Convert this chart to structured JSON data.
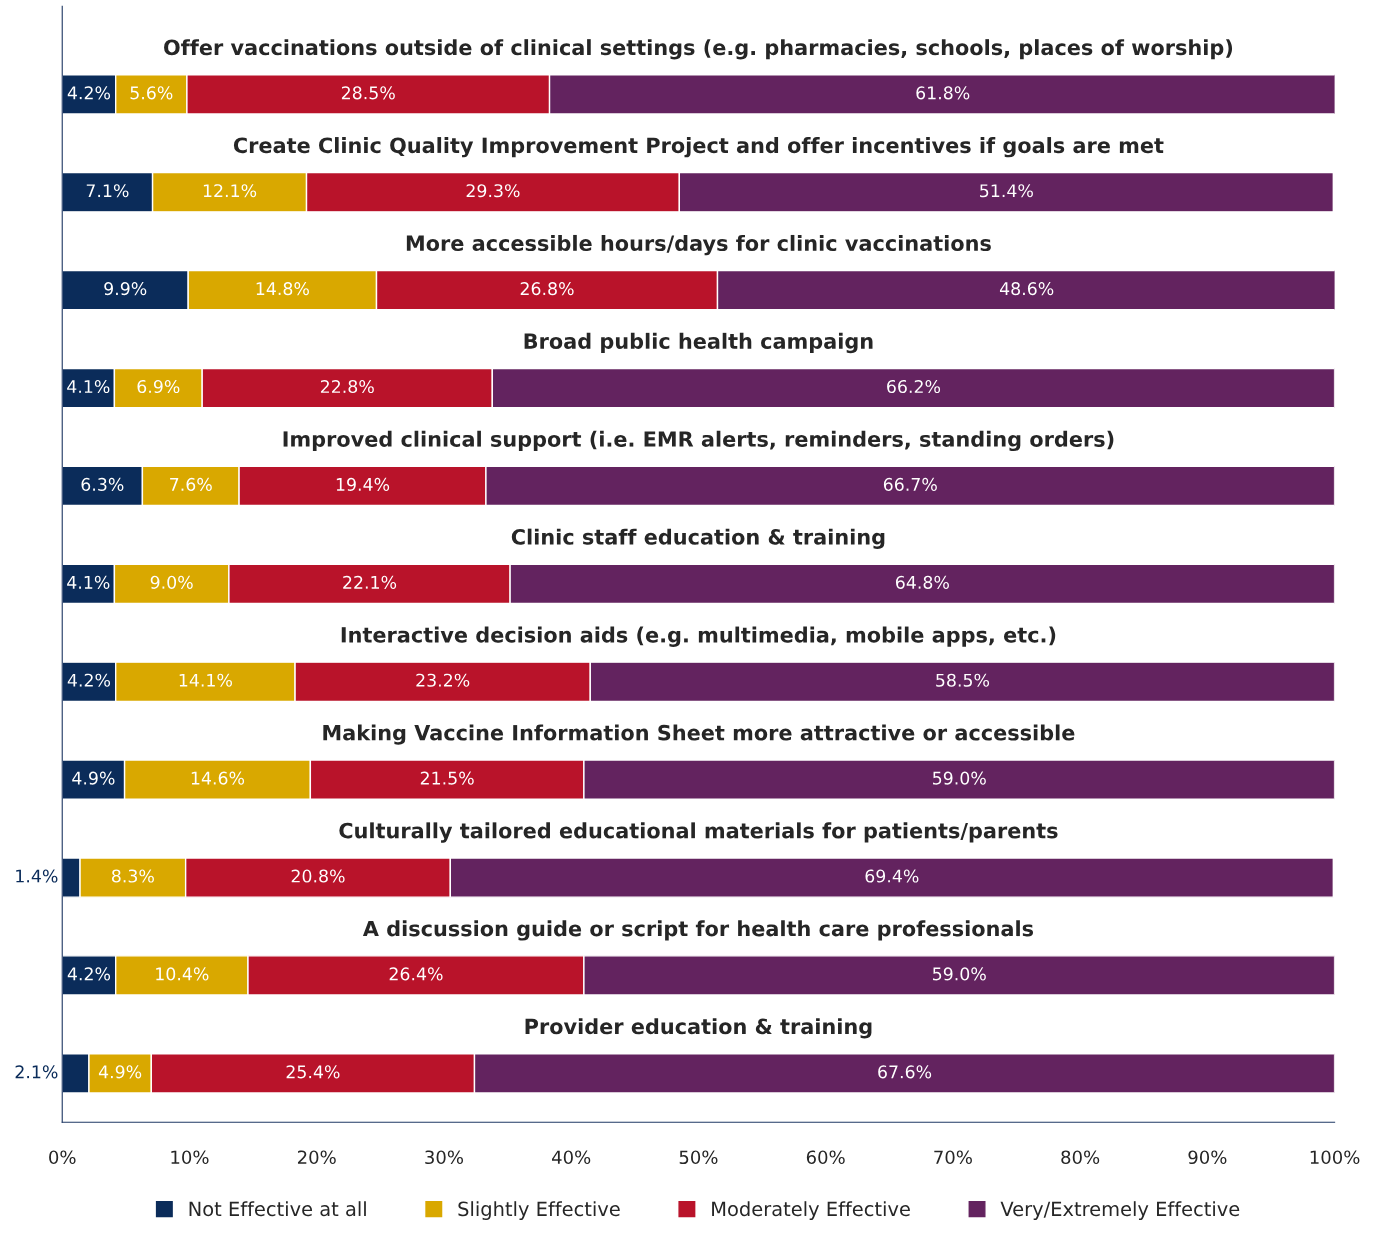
{
  "chart_data": {
    "type": "bar",
    "orientation": "horizontal",
    "stacked": true,
    "categories": [
      "Offer vaccinations outside of clinical settings (e.g. pharmacies, schools, places of worship)",
      "Create Clinic Quality Improvement Project and offer incentives if goals are met",
      "More accessible hours/days for clinic vaccinations",
      "Broad public health campaign",
      "Improved clinical support (i.e. EMR alerts, reminders, standing orders)",
      "Clinic staff education & training",
      "Interactive decision aids (e.g. multimedia, mobile apps, etc.)",
      "Making Vaccine Information Sheet more attractive or accessible",
      "Culturally tailored educational materials for patients/parents",
      "A discussion guide or script for health care professionals",
      "Provider education & training"
    ],
    "series": [
      {
        "name": "Not Effective at all",
        "color": "#0b2c5a",
        "values": [
          4.2,
          7.1,
          9.9,
          4.1,
          6.3,
          4.1,
          4.2,
          4.9,
          1.4,
          4.2,
          2.1
        ],
        "value_labels": [
          "4.2%",
          "7.1%",
          "9.9%",
          "4.1%",
          "6.3%",
          "4.1%",
          "4.2%",
          "4.9%",
          "1.4%",
          "4.2%",
          "2.1%"
        ]
      },
      {
        "name": "Slightly Effective",
        "color": "#d9a800",
        "values": [
          5.6,
          12.1,
          14.8,
          6.9,
          7.6,
          9.0,
          14.1,
          14.6,
          8.3,
          10.4,
          4.9
        ],
        "value_labels": [
          "5.6%",
          "12.1%",
          "14.8%",
          "6.9%",
          "7.6%",
          "9.0%",
          "14.1%",
          "14.6%",
          "8.3%",
          "10.4%",
          "4.9%"
        ]
      },
      {
        "name": "Moderately Effective",
        "color": "#b9132a",
        "values": [
          28.5,
          29.3,
          26.8,
          22.8,
          19.4,
          22.1,
          23.2,
          21.5,
          20.8,
          26.4,
          25.4
        ],
        "value_labels": [
          "28.5%",
          "29.3%",
          "26.8%",
          "22.8%",
          "19.4%",
          "22.1%",
          "23.2%",
          "21.5%",
          "20.8%",
          "26.4%",
          "25.4%"
        ]
      },
      {
        "name": "Very/Extremely Effective",
        "color": "#63235f",
        "values": [
          61.8,
          51.4,
          48.6,
          66.2,
          66.7,
          64.8,
          58.5,
          59.0,
          69.4,
          59.0,
          67.6
        ],
        "value_labels": [
          "61.8%",
          "51.4%",
          "48.6%",
          "66.2%",
          "66.7%",
          "64.8%",
          "58.5%",
          "59.0%",
          "69.4%",
          "59.0%",
          "67.6%"
        ]
      }
    ],
    "xlim": [
      0,
      100
    ],
    "xticks": [
      {
        "value": 0,
        "label": "0%"
      },
      {
        "value": 10,
        "label": "10%"
      },
      {
        "value": 20,
        "label": "20%"
      },
      {
        "value": 30,
        "label": "30%"
      },
      {
        "value": 40,
        "label": "40%"
      },
      {
        "value": 50,
        "label": "50%"
      },
      {
        "value": 60,
        "label": "60%"
      },
      {
        "value": 70,
        "label": "70%"
      },
      {
        "value": 80,
        "label": "80%"
      },
      {
        "value": 90,
        "label": "90%"
      },
      {
        "value": 100,
        "label": "100%"
      }
    ],
    "legend": "bottom",
    "grid": false
  }
}
